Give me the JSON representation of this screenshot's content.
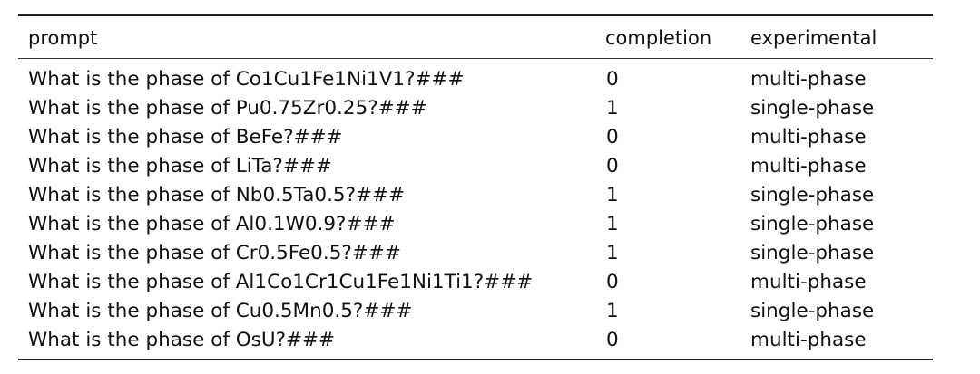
{
  "table": {
    "headers": {
      "prompt": "prompt",
      "completion": "completion",
      "experimental": "experimental"
    },
    "rows": [
      {
        "prompt": "What is the phase of Co1Cu1Fe1Ni1V1?###",
        "completion": "0",
        "experimental": "multi-phase"
      },
      {
        "prompt": "What is the phase of Pu0.75Zr0.25?###",
        "completion": "1",
        "experimental": "single-phase"
      },
      {
        "prompt": "What is the phase of BeFe?###",
        "completion": "0",
        "experimental": "multi-phase"
      },
      {
        "prompt": "What is the phase of LiTa?###",
        "completion": "0",
        "experimental": "multi-phase"
      },
      {
        "prompt": "What is the phase of Nb0.5Ta0.5?###",
        "completion": "1",
        "experimental": "single-phase"
      },
      {
        "prompt": "What is the phase of Al0.1W0.9?###",
        "completion": "1",
        "experimental": "single-phase"
      },
      {
        "prompt": "What is the phase of Cr0.5Fe0.5?###",
        "completion": "1",
        "experimental": "single-phase"
      },
      {
        "prompt": "What is the phase of Al1Co1Cr1Cu1Fe1Ni1Ti1?###",
        "completion": "0",
        "experimental": "multi-phase"
      },
      {
        "prompt": "What is the phase of Cu0.5Mn0.5?###",
        "completion": "1",
        "experimental": "single-phase"
      },
      {
        "prompt": "What is the phase of OsU?###",
        "completion": "0",
        "experimental": "multi-phase"
      }
    ]
  }
}
